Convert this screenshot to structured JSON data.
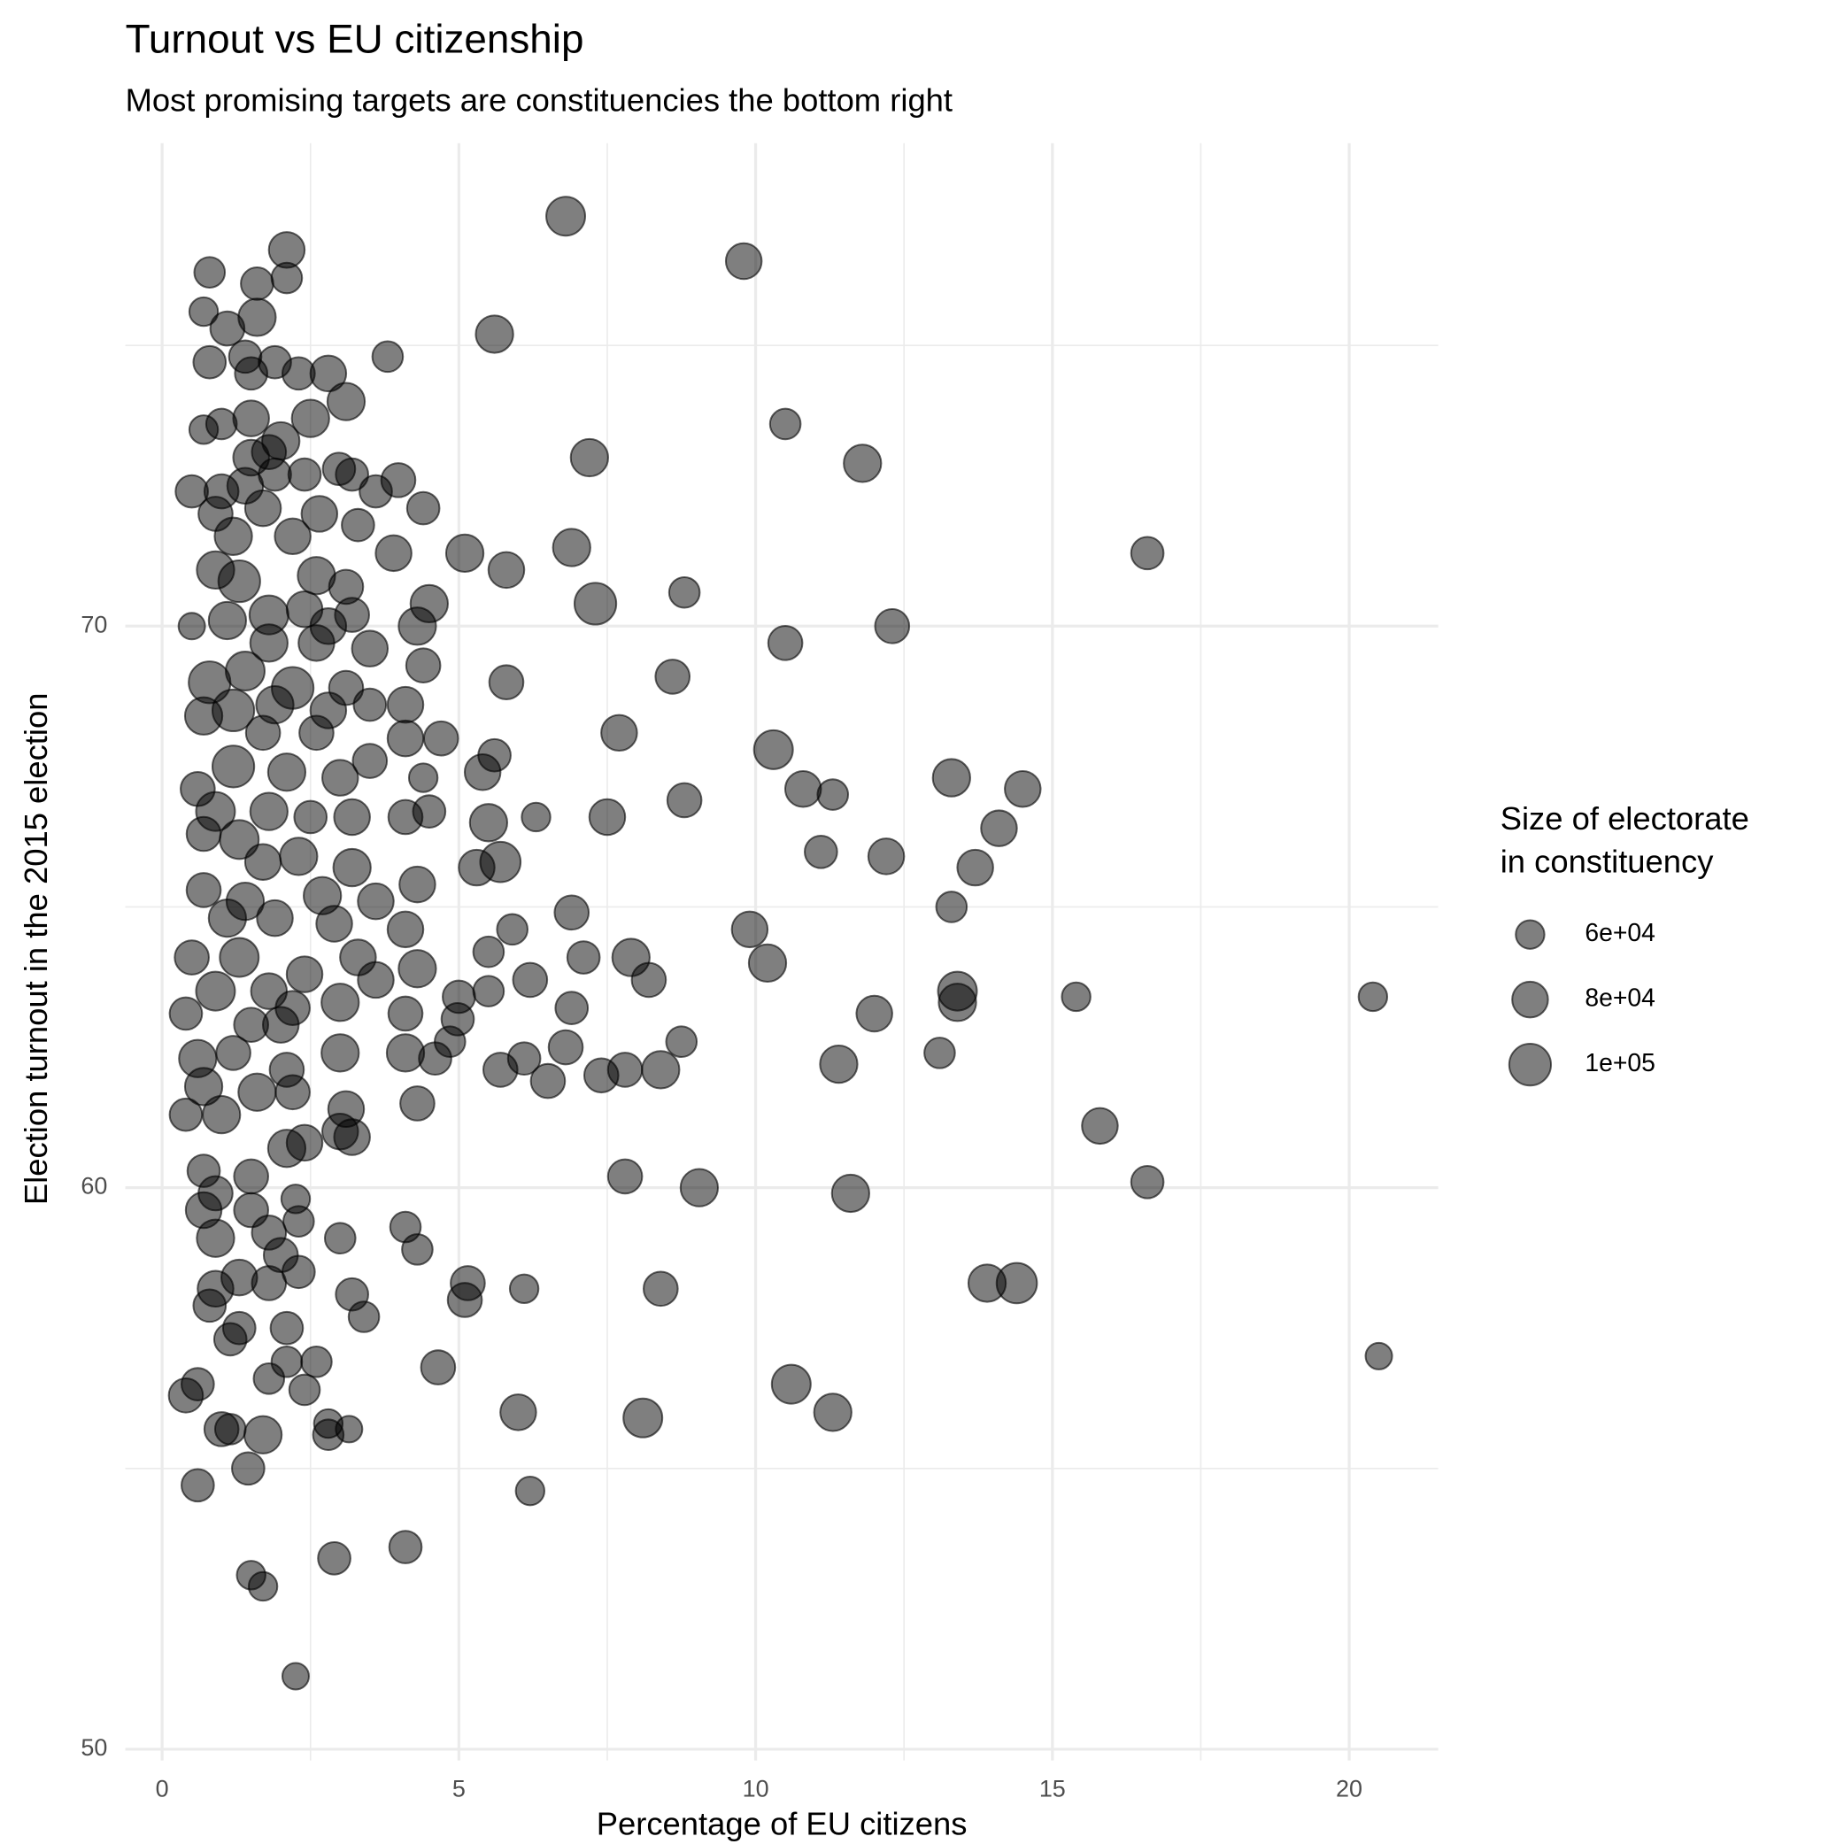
{
  "chart_data": {
    "type": "scatter",
    "title": "Turnout vs EU citizenship",
    "subtitle": "Most promising targets are constituencies the bottom right",
    "x_label": "Percentage of EU citizens",
    "y_label": "Election turnout in the 2015 election",
    "legend_title": [
      "Size of electorate",
      "in constituency"
    ],
    "legend": [
      {
        "value": 60000,
        "label": "6e+04"
      },
      {
        "value": 80000,
        "label": "8e+04"
      },
      {
        "value": 100000,
        "label": "1e+05"
      }
    ],
    "legend_position": "right",
    "color": "#000000",
    "opacity": 0.5,
    "grid": true,
    "xlim": [
      -0.62,
      21.5
    ],
    "ylim": [
      49.8,
      78.6
    ],
    "xticks": [
      0,
      5,
      10,
      15,
      20
    ],
    "yticks": [
      50,
      60,
      70
    ],
    "xminor": [
      2.5,
      7.5,
      12.5,
      17.5
    ],
    "yminor": [
      55,
      65,
      75
    ],
    "x": [
      6.8,
      9.8,
      2.1,
      0.8,
      2.1,
      1.6,
      0.7,
      1.6,
      1.1,
      5.6,
      1.4,
      0.8,
      1.9,
      1.5,
      2.3,
      2.8,
      3.8,
      3.1,
      2.5,
      0.7,
      1.0,
      1.5,
      2.0,
      1.8,
      1.5,
      10.5,
      7.2,
      11.8,
      2.4,
      2.98,
      3.2,
      3.98,
      0.5,
      1.0,
      1.4,
      1.9,
      3.6,
      4.4,
      0.9,
      1.7,
      2.65,
      3.3,
      1.2,
      2.2,
      3.9,
      5.1,
      6.9,
      5.8,
      16.6,
      0.9,
      1.3,
      2.6,
      3.1,
      4.5,
      7.3,
      8.8,
      0.5,
      1.1,
      1.8,
      2.4,
      2.8,
      3.2,
      4.3,
      12.3,
      10.5,
      1.8,
      2.6,
      3.5,
      4.4,
      0.8,
      1.4,
      2.2,
      3.1,
      5.8,
      8.6,
      0.7,
      1.2,
      1.9,
      2.8,
      4.1,
      3.5,
      7.7,
      1.7,
      2.6,
      4.1,
      4.7,
      10.3,
      0.6,
      1.2,
      2.1,
      3.0,
      3.5,
      5.6,
      5.4,
      4.4,
      13.3,
      10.8,
      14.5,
      11.3,
      8.8,
      0.9,
      1.8,
      2.5,
      3.2,
      4.1,
      4.5,
      5.5,
      6.3,
      7.5,
      14.1,
      0.7,
      1.3,
      2.3,
      11.1,
      12.2,
      13.7,
      5.3,
      5.7,
      3.2,
      1.7,
      4.3,
      0.7,
      1.4,
      2.7,
      3.6,
      13.3,
      6.9,
      1.1,
      1.9,
      2.9,
      4.1,
      5.9,
      9.9,
      0.5,
      1.3,
      3.3,
      5.5,
      7.1,
      7.9,
      10.2,
      4.3,
      2.4,
      3.6,
      8.2,
      6.2,
      0.9,
      1.8,
      13.4,
      13.4,
      5.0,
      5.5,
      15.4,
      20.4,
      6.9,
      0.4,
      3.0,
      4.1,
      2.2,
      12.0,
      4.98,
      1.5,
      2.0,
      8.75,
      4.85,
      0.6,
      1.2,
      3.0,
      4.1,
      4.6,
      6.1,
      6.8,
      13.1,
      11.4,
      5.7,
      7.4,
      7.8,
      8.4,
      6.5,
      2.1,
      0.7,
      1.6,
      2.2,
      0.4,
      1.0,
      3.1,
      4.3,
      3.0,
      3.2,
      2.4,
      2.1,
      15.8,
      0.7,
      1.5,
      7.8,
      16.6,
      9.05,
      11.6,
      0.9,
      2.25,
      0.7,
      1.5,
      2.3,
      4.1,
      1.8,
      0.9,
      3.0,
      2.0,
      4.3,
      1.3,
      1.8,
      2.3,
      0.9,
      3.2,
      5.15,
      5.1,
      6.1,
      8.4,
      13.9,
      14.4,
      0.8,
      1.3,
      3.4,
      2.1,
      1.15,
      2.1,
      2.6,
      4.65,
      20.5,
      1.8,
      0.6,
      0.4,
      2.4,
      10.6,
      6.0,
      8.1,
      11.3,
      1.0,
      1.15,
      1.7,
      2.8,
      2.8,
      3.15,
      1.45,
      0.6,
      6.2,
      2.9,
      4.1,
      1.5,
      1.7,
      2.25
    ],
    "values": [
      77.3,
      76.5,
      76.7,
      76.3,
      76.2,
      76.1,
      75.6,
      75.5,
      75.3,
      75.2,
      74.8,
      74.7,
      74.7,
      74.5,
      74.5,
      74.5,
      74.8,
      74.0,
      73.7,
      73.5,
      73.6,
      73.7,
      73.3,
      73.1,
      73.0,
      73.6,
      73.0,
      72.9,
      72.7,
      72.8,
      72.7,
      72.6,
      72.4,
      72.4,
      72.5,
      72.7,
      72.4,
      72.1,
      72.0,
      72.1,
      72.0,
      71.8,
      71.6,
      71.6,
      71.3,
      71.3,
      71.4,
      71.0,
      71.3,
      71.0,
      70.8,
      70.9,
      70.7,
      70.4,
      70.4,
      70.6,
      70.0,
      70.1,
      70.2,
      70.3,
      70.0,
      70.2,
      70.0,
      70.0,
      69.7,
      69.7,
      69.7,
      69.6,
      69.3,
      69.0,
      69.2,
      68.9,
      68.9,
      69.0,
      69.1,
      68.4,
      68.5,
      68.6,
      68.5,
      68.6,
      68.6,
      68.1,
      68.1,
      68.1,
      68.0,
      68.0,
      67.8,
      67.1,
      67.5,
      67.4,
      67.3,
      67.6,
      67.7,
      67.4,
      67.3,
      67.3,
      67.1,
      67.1,
      67.0,
      66.9,
      66.7,
      66.7,
      66.6,
      66.6,
      66.6,
      66.7,
      66.5,
      66.6,
      66.6,
      66.4,
      66.3,
      66.2,
      65.9,
      65.98,
      65.9,
      65.7,
      65.7,
      65.8,
      65.7,
      65.8,
      65.4,
      65.3,
      65.1,
      65.2,
      65.1,
      65.0,
      64.9,
      64.8,
      64.8,
      64.7,
      64.6,
      64.6,
      64.6,
      64.1,
      64.1,
      64.1,
      64.2,
      64.1,
      64.1,
      64.0,
      63.9,
      63.8,
      63.7,
      63.7,
      63.7,
      63.5,
      63.5,
      63.5,
      63.3,
      63.4,
      63.5,
      63.4,
      63.4,
      63.2,
      63.1,
      63.3,
      63.1,
      63.2,
      63.1,
      63.0,
      62.9,
      62.9,
      62.6,
      62.6,
      62.3,
      62.4,
      62.4,
      62.4,
      62.3,
      62.3,
      62.5,
      62.4,
      62.2,
      62.1,
      62.0,
      62.1,
      62.1,
      61.9,
      62.1,
      61.8,
      61.7,
      61.7,
      61.3,
      61.3,
      61.4,
      61.5,
      61.0,
      60.9,
      60.8,
      60.7,
      61.1,
      60.3,
      60.2,
      60.2,
      60.1,
      60.0,
      59.9,
      59.9,
      59.8,
      59.6,
      59.6,
      59.4,
      59.3,
      59.2,
      59.1,
      59.1,
      58.8,
      58.9,
      58.4,
      58.3,
      58.5,
      58.2,
      58.1,
      58.3,
      58.0,
      58.2,
      58.2,
      58.3,
      58.3,
      57.9,
      57.5,
      57.7,
      57.5,
      57.3,
      56.9,
      56.9,
      56.8,
      57.0,
      56.6,
      56.5,
      56.3,
      56.4,
      56.5,
      56.0,
      55.9,
      56.0,
      55.7,
      55.7,
      55.6,
      55.8,
      55.6,
      55.7,
      55.0,
      54.7,
      54.6,
      53.4,
      53.6,
      53.1,
      52.9,
      51.3
    ],
    "sizes": [
      90000,
      80000,
      80000,
      65000,
      65000,
      70000,
      60000,
      85000,
      75000,
      85000,
      70000,
      70000,
      70000,
      70000,
      70000,
      80000,
      65000,
      85000,
      85000,
      60000,
      65000,
      80000,
      85000,
      75000,
      80000,
      65000,
      85000,
      85000,
      70000,
      70000,
      70000,
      75000,
      70000,
      75000,
      80000,
      70000,
      70000,
      70000,
      75000,
      80000,
      80000,
      70000,
      85000,
      80000,
      80000,
      85000,
      85000,
      80000,
      70000,
      85000,
      100000,
      85000,
      75000,
      85000,
      100000,
      65000,
      55000,
      85000,
      90000,
      80000,
      80000,
      75000,
      85000,
      75000,
      75000,
      85000,
      80000,
      80000,
      75000,
      100000,
      90000,
      100000,
      75000,
      75000,
      75000,
      85000,
      100000,
      85000,
      80000,
      80000,
      70000,
      80000,
      75000,
      75000,
      80000,
      75000,
      90000,
      75000,
      100000,
      85000,
      80000,
      75000,
      70000,
      80000,
      60000,
      85000,
      80000,
      80000,
      65000,
      75000,
      90000,
      85000,
      70000,
      80000,
      75000,
      70000,
      85000,
      60000,
      80000,
      80000,
      75000,
      90000,
      85000,
      70000,
      80000,
      80000,
      80000,
      95000,
      85000,
      80000,
      80000,
      75000,
      85000,
      85000,
      80000,
      65000,
      75000,
      85000,
      80000,
      80000,
      80000,
      65000,
      80000,
      75000,
      90000,
      80000,
      65000,
      70000,
      85000,
      85000,
      85000,
      80000,
      80000,
      75000,
      75000,
      90000,
      80000,
      90000,
      85000,
      70000,
      65000,
      60000,
      60000,
      70000,
      70000,
      85000,
      75000,
      75000,
      80000,
      70000,
      75000,
      80000,
      65000,
      65000,
      85000,
      75000,
      85000,
      85000,
      70000,
      70000,
      75000,
      65000,
      85000,
      75000,
      75000,
      75000,
      85000,
      75000,
      75000,
      85000,
      85000,
      75000,
      70000,
      85000,
      80000,
      75000,
      80000,
      80000,
      80000,
      85000,
      80000,
      70000,
      75000,
      75000,
      70000,
      85000,
      85000,
      75000,
      60000,
      80000,
      75000,
      65000,
      65000,
      75000,
      85000,
      65000,
      75000,
      65000,
      80000,
      75000,
      70000,
      80000,
      70000,
      75000,
      75000,
      60000,
      75000,
      85000,
      95000,
      70000,
      70000,
      65000,
      70000,
      70000,
      65000,
      65000,
      75000,
      55000,
      65000,
      70000,
      75000,
      65000,
      90000,
      80000,
      90000,
      85000,
      75000,
      65000,
      85000,
      60000,
      65000,
      55000,
      70000,
      70000,
      60000,
      70000,
      70000,
      60000,
      60000,
      55000
    ]
  }
}
